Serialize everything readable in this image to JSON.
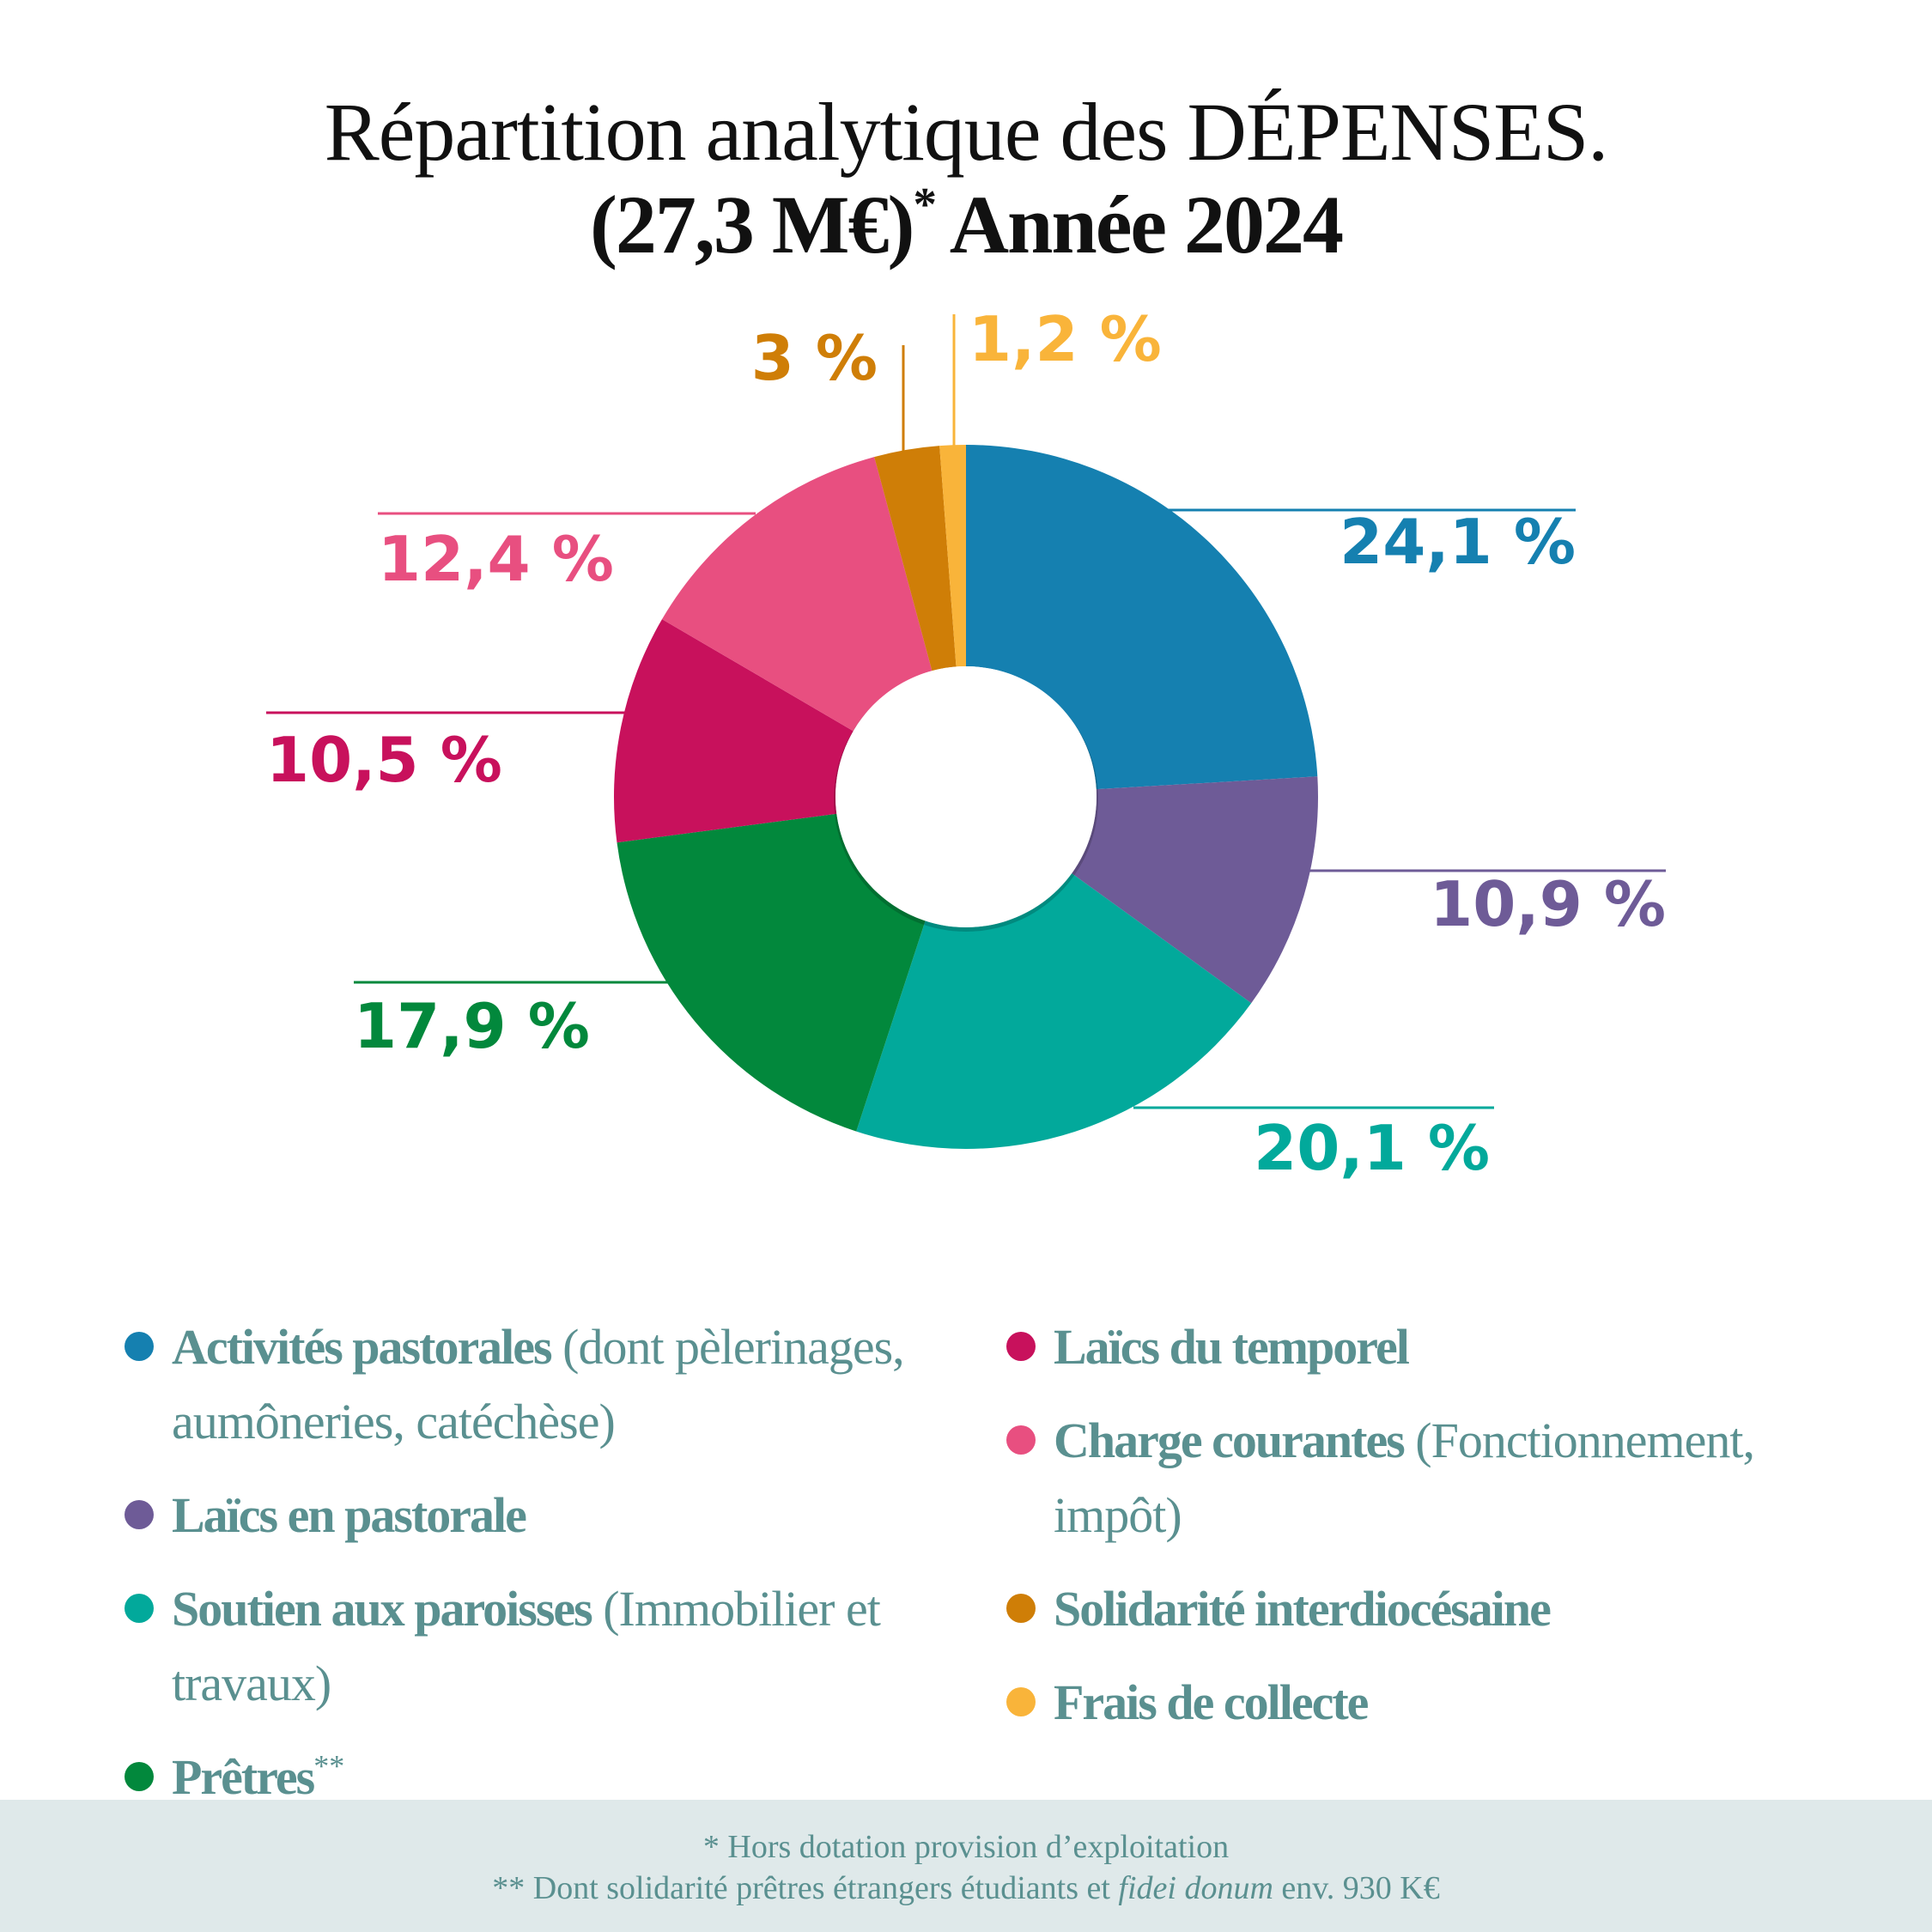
{
  "title": {
    "line1": "Répartition analytique des DÉPENSES.",
    "line2": "(27,3 M€)",
    "line2_star": "*",
    "line2_rest": " Année 2024"
  },
  "chart_data": {
    "type": "donut",
    "title": "Répartition analytique des DÉPENSES. (27,3 M€)* Année 2024",
    "unit": "%",
    "slices": [
      {
        "label": "Activités pastorales",
        "value": 24.1,
        "display": "24,1 %",
        "color": "#1580b0"
      },
      {
        "label": "Laïcs en pastorale",
        "value": 10.9,
        "display": "10,9 %",
        "color": "#6e5b97"
      },
      {
        "label": "Soutien aux paroisses",
        "value": 20.1,
        "display": "20,1 %",
        "color": "#02a99b"
      },
      {
        "label": "Prêtres",
        "value": 17.9,
        "display": "17,9 %",
        "color": "#02883c"
      },
      {
        "label": "Laïcs du temporel",
        "value": 10.5,
        "display": "10,5 %",
        "color": "#c8115c"
      },
      {
        "label": "Charge courantes",
        "value": 12.4,
        "display": "12,4 %",
        "color": "#e84f80"
      },
      {
        "label": "Solidarité interdiocésaine",
        "value": 3.0,
        "display": "3 %",
        "color": "#cf7e07"
      },
      {
        "label": "Frais de collecte",
        "value": 1.2,
        "display": "1,2 %",
        "color": "#f9b43a"
      }
    ]
  },
  "legend": {
    "left": [
      {
        "bold": "Activités pastorales",
        "desc": " (dont pèlerinages, aumôneries, catéchèse)",
        "color": "#1580b0"
      },
      {
        "bold": "Laïcs en pastorale",
        "desc": "",
        "color": "#6e5b97"
      },
      {
        "bold": "Soutien aux paroisses",
        "desc": " (Immobilier et travaux)",
        "color": "#02a99b"
      },
      {
        "bold": "Prêtres",
        "sup": "**",
        "desc": "",
        "color": "#02883c"
      }
    ],
    "right": [
      {
        "bold": "Laïcs du temporel",
        "desc": "",
        "color": "#c8115c"
      },
      {
        "bold": "Charge courantes",
        "desc": " (Fonctionnement, impôt)",
        "color": "#e84f80"
      },
      {
        "bold": "Solidarité interdiocésaine",
        "desc": "",
        "color": "#cf7e07"
      },
      {
        "bold": "Frais de collecte",
        "desc": "",
        "color": "#f9b43a"
      }
    ]
  },
  "footer": {
    "note1": "* Hors dotation provision d’exploitation",
    "note2_pre": "** Dont solidarité prêtres étrangers étudiants et ",
    "note2_italic": "fidei donum",
    "note2_post": " env. 930 K€"
  }
}
